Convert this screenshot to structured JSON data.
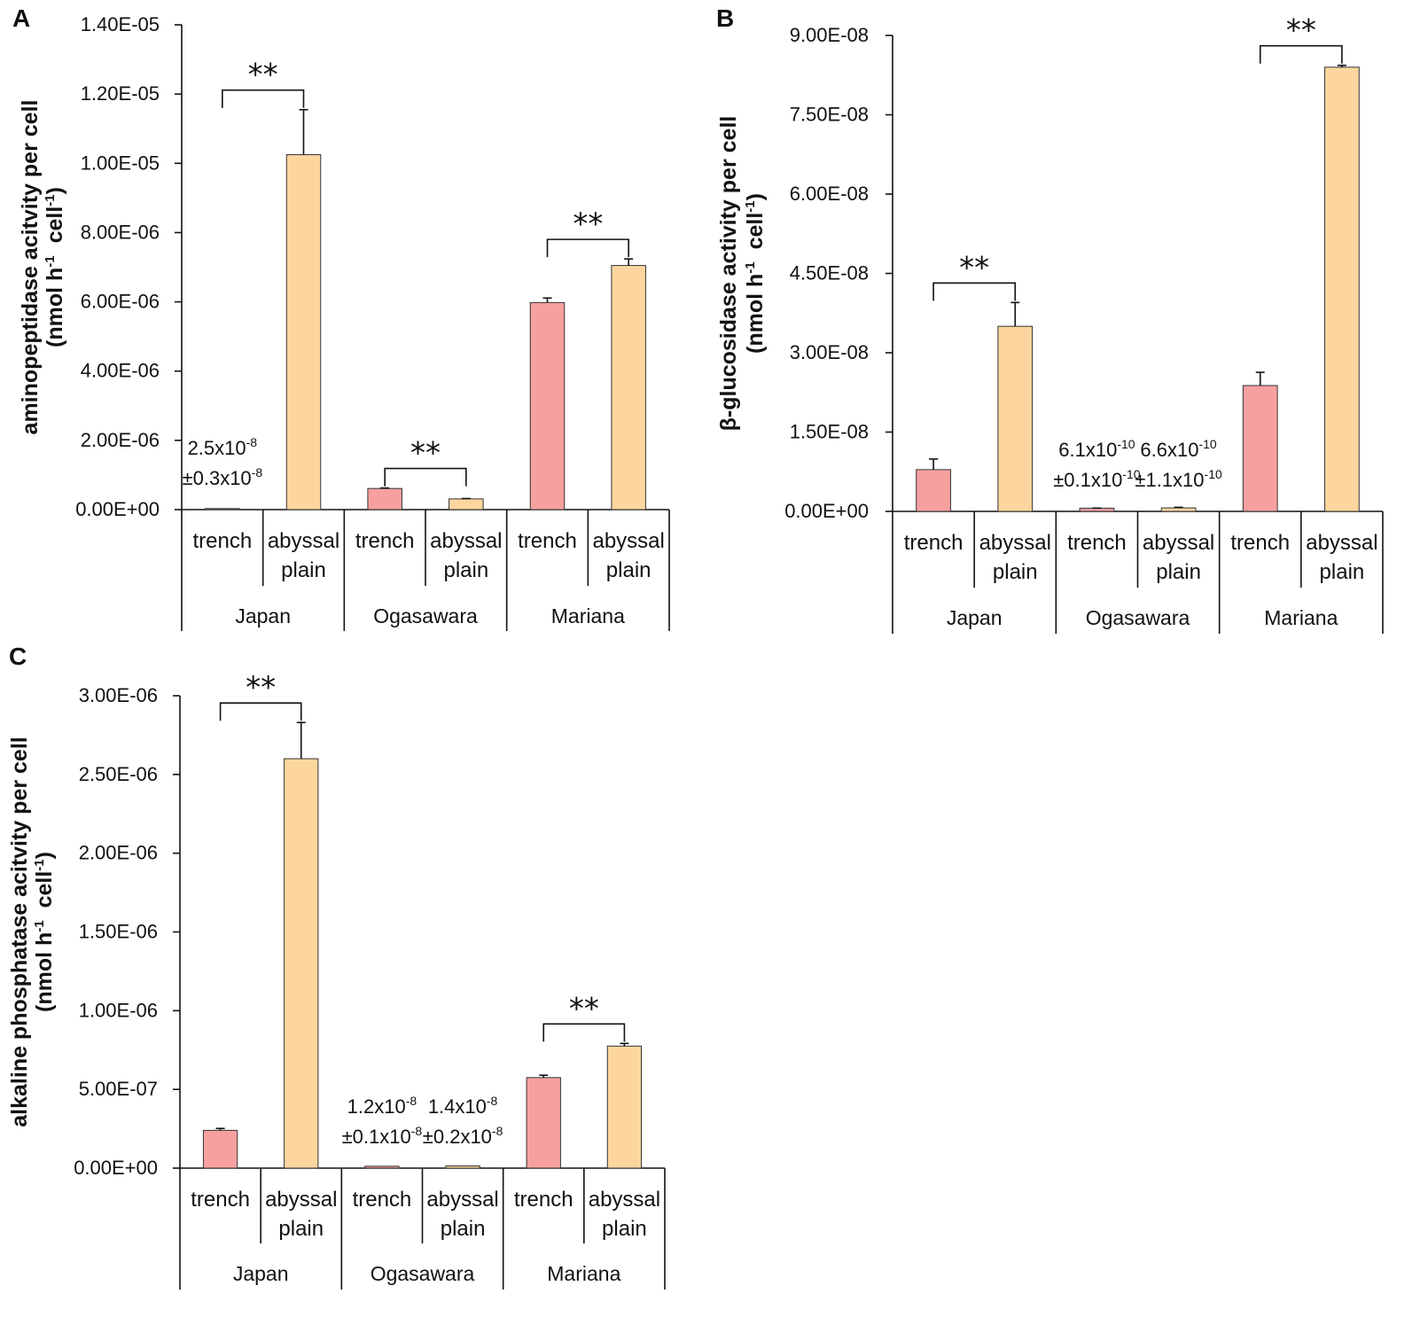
{
  "colors": {
    "trench": "#f7a0a0",
    "abyssal": "#fcd69e",
    "axis": "#111111"
  },
  "chart_data": [
    {
      "type": "bar",
      "panel_label": "A",
      "ylabel_line1": "aminopeptidase acitvity per cell",
      "ylabel_line2_parts": [
        "(nmol h",
        "-1",
        "  cell",
        "-1",
        ")"
      ],
      "ylim": [
        0,
        1.4e-05
      ],
      "yticks": [
        0,
        2e-06,
        4e-06,
        6e-06,
        8e-06,
        1e-05,
        1.2e-05,
        1.4e-05
      ],
      "ytick_labels": [
        "0.00E+00",
        "2.00E-06",
        "4.00E-06",
        "6.00E-06",
        "8.00E-06",
        "1.00E-05",
        "1.20E-05",
        "1.40E-05"
      ],
      "groups": [
        "Japan",
        "Ogasawara",
        "Mariana"
      ],
      "categories": [
        "trench",
        "abyssal plain",
        "trench",
        "abyssal plain",
        "trench",
        "abyssal plain"
      ],
      "category_lines": [
        [
          "trench"
        ],
        [
          "abyssal",
          "plain"
        ],
        [
          "trench"
        ],
        [
          "abyssal",
          "plain"
        ],
        [
          "trench"
        ],
        [
          "abyssal",
          "plain"
        ]
      ],
      "values": [
        2.5e-08,
        1.025e-05,
        6.1e-07,
        3.1e-07,
        5.98e-06,
        7.05e-06
      ],
      "errors": [
        3e-09,
        1.3e-06,
        1.5e-08,
        1e-08,
        1.3e-07,
        1.9e-07
      ],
      "significance": [
        {
          "group": 0,
          "label": "**"
        },
        {
          "group": 1,
          "label": "**"
        },
        {
          "group": 2,
          "label": "**"
        }
      ],
      "annotations": [
        {
          "bar": 0,
          "line1_base": "2.5x10",
          "line1_exp": "-8",
          "line2_base": "±0.3x10",
          "line2_exp": "-8"
        }
      ]
    },
    {
      "type": "bar",
      "panel_label": "B",
      "ylabel_line1": "β-glucosidase activity per cell",
      "ylabel_line2_parts": [
        "(nmol h",
        "-1",
        "  cell",
        "-1",
        ")"
      ],
      "ylim": [
        0,
        9e-08
      ],
      "yticks": [
        0,
        1.5e-08,
        3e-08,
        4.5e-08,
        6e-08,
        7.5e-08,
        9e-08
      ],
      "ytick_labels": [
        "0.00E+00",
        "1.50E-08",
        "3.00E-08",
        "4.50E-08",
        "6.00E-08",
        "7.50E-08",
        "9.00E-08"
      ],
      "groups": [
        "Japan",
        "Ogasawara",
        "Mariana"
      ],
      "categories": [
        "trench",
        "abyssal plain",
        "trench",
        "abyssal plain",
        "trench",
        "abyssal plain"
      ],
      "category_lines": [
        [
          "trench"
        ],
        [
          "abyssal",
          "plain"
        ],
        [
          "trench"
        ],
        [
          "abyssal",
          "plain"
        ],
        [
          "trench"
        ],
        [
          "abyssal",
          "plain"
        ]
      ],
      "values": [
        7.9e-09,
        3.5e-08,
        6.1e-10,
        6.6e-10,
        2.38e-08,
        8.4e-08
      ],
      "errors": [
        2e-09,
        4.5e-09,
        1e-11,
        1.1e-10,
        2.5e-09,
        3.5e-10
      ],
      "significance": [
        {
          "group": 0,
          "label": "**"
        },
        {
          "group": 2,
          "label": "**"
        }
      ],
      "annotations": [
        {
          "bar": 2,
          "line1_base": "6.1x10",
          "line1_exp": "-10",
          "line2_base": "±0.1x10",
          "line2_exp": "-10"
        },
        {
          "bar": 3,
          "line1_base": "6.6x10",
          "line1_exp": "-10",
          "line2_base": "±1.1x10",
          "line2_exp": "-10"
        }
      ]
    },
    {
      "type": "bar",
      "panel_label": "C",
      "ylabel_line1": "alkaline phosphatase acitvity per cell",
      "ylabel_line2_parts": [
        "(nmol h",
        "-1",
        "  cell",
        "-1",
        ")"
      ],
      "ylim": [
        0,
        3e-06
      ],
      "yticks": [
        0,
        5e-07,
        1e-06,
        1.5e-06,
        2e-06,
        2.5e-06,
        3e-06
      ],
      "ytick_labels": [
        "0.00E+00",
        "5.00E-07",
        "1.00E-06",
        "1.50E-06",
        "2.00E-06",
        "2.50E-06",
        "3.00E-06"
      ],
      "groups": [
        "Japan",
        "Ogasawara",
        "Mariana"
      ],
      "categories": [
        "trench",
        "abyssal plain",
        "trench",
        "abyssal plain",
        "trench",
        "abyssal plain"
      ],
      "category_lines": [
        [
          "trench"
        ],
        [
          "abyssal",
          "plain"
        ],
        [
          "trench"
        ],
        [
          "abyssal",
          "plain"
        ],
        [
          "trench"
        ],
        [
          "abyssal",
          "plain"
        ]
      ],
      "values": [
        2.4e-07,
        2.6e-06,
        1.2e-08,
        1.4e-08,
        5.75e-07,
        7.75e-07
      ],
      "errors": [
        1.2e-08,
        2.3e-07,
        1e-09,
        2e-09,
        1.5e-08,
        1.7e-08
      ],
      "significance": [
        {
          "group": 0,
          "label": "**"
        },
        {
          "group": 2,
          "label": "**"
        }
      ],
      "annotations": [
        {
          "bar": 2,
          "line1_base": "1.2x10",
          "line1_exp": "-8",
          "line2_base": "±0.1x10",
          "line2_exp": "-8"
        },
        {
          "bar": 3,
          "line1_base": "1.4x10",
          "line1_exp": "-8",
          "line2_base": "±0.2x10",
          "line2_exp": "-8"
        }
      ]
    }
  ]
}
